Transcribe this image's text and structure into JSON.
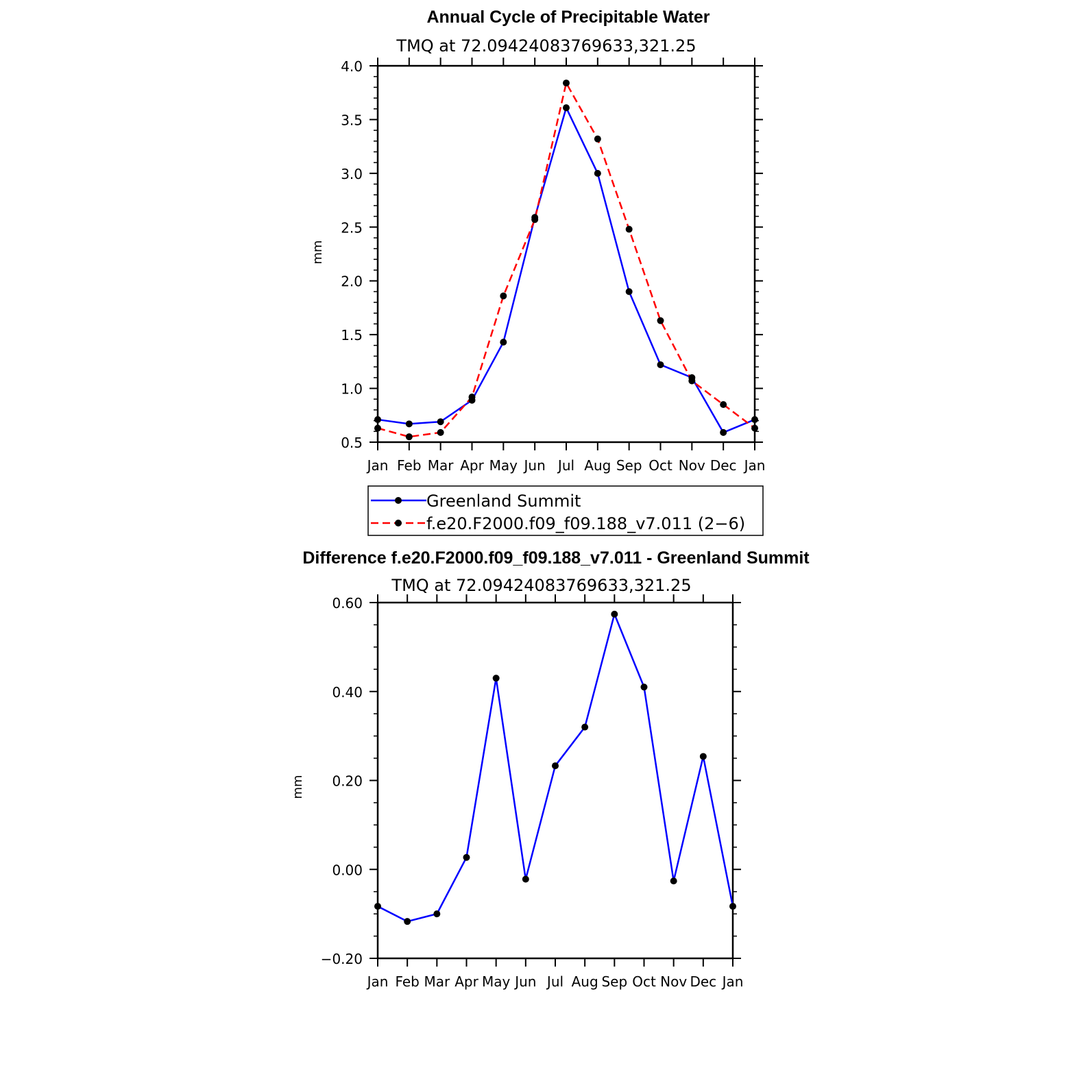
{
  "chart_data": [
    {
      "type": "line",
      "title": "Annual Cycle of Precipitable Water",
      "subtitle": "TMQ at 72.09424083769633,321.25",
      "xlabel": "",
      "ylabel": "mm",
      "categories": [
        "Jan",
        "Feb",
        "Mar",
        "Apr",
        "May",
        "Jun",
        "Jul",
        "Aug",
        "Sep",
        "Oct",
        "Nov",
        "Dec",
        "Jan"
      ],
      "ylim": [
        0.5,
        4.0
      ],
      "yticks": [
        "0.5",
        "1.0",
        "1.5",
        "2.0",
        "2.5",
        "3.0",
        "3.5",
        "4.0"
      ],
      "series": [
        {
          "name": "Greenland Summit",
          "color": "#0000ff",
          "dashed": false,
          "values": [
            0.71,
            0.67,
            0.69,
            0.89,
            1.43,
            2.59,
            3.61,
            3.0,
            1.9,
            1.22,
            1.1,
            0.59,
            0.71
          ]
        },
        {
          "name": "f.e20.F2000.f09_f09.188_v7.011 (2−6)",
          "color": "#ff0000",
          "dashed": true,
          "values": [
            0.63,
            0.55,
            0.59,
            0.92,
            1.86,
            2.57,
            3.84,
            3.32,
            2.48,
            1.63,
            1.07,
            0.85,
            0.63
          ]
        }
      ],
      "grid": false,
      "legend": "below"
    },
    {
      "type": "line",
      "title": "Difference f.e20.F2000.f09_f09.188_v7.011 - Greenland Summit",
      "subtitle": "TMQ at 72.09424083769633,321.25",
      "xlabel": "",
      "ylabel": "mm",
      "categories": [
        "Jan",
        "Feb",
        "Mar",
        "Apr",
        "May",
        "Jun",
        "Jul",
        "Aug",
        "Sep",
        "Oct",
        "Nov",
        "Dec",
        "Jan"
      ],
      "ylim": [
        -0.2,
        0.6
      ],
      "yticks": [
        "−0.20",
        "0.00",
        "0.20",
        "0.40",
        "0.60"
      ],
      "series": [
        {
          "color": "#0000ff",
          "dashed": false,
          "values": [
            -0.083,
            -0.117,
            -0.1,
            0.027,
            0.43,
            -0.022,
            0.233,
            0.32,
            0.574,
            0.41,
            -0.026,
            0.254,
            -0.083
          ]
        }
      ],
      "grid": false
    }
  ]
}
